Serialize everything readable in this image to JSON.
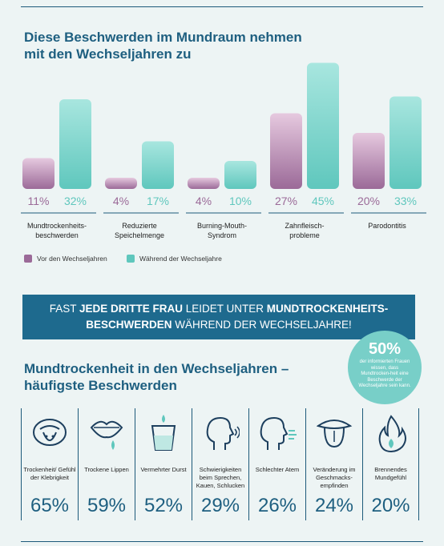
{
  "title": "Diese Beschwerden im Mundraum nehmen mit den Wechseljahren zu",
  "chart_data": {
    "type": "bar",
    "categories": [
      "Mundtrockenheits-\nbeschwerden",
      "Reduzierte\nSpeichelmenge",
      "Burning-Mouth-\nSyndrom",
      "Zahnfleisch-\nprobleme",
      "Parodontitis"
    ],
    "series": [
      {
        "name": "Vor den Wechseljahren",
        "values": [
          11,
          4,
          4,
          27,
          20
        ],
        "labels": [
          "11%",
          "4%",
          "4%",
          "27%",
          "20%"
        ],
        "color": "#9b6a98"
      },
      {
        "name": "Während der Wechseljahre",
        "values": [
          32,
          17,
          10,
          45,
          33
        ],
        "labels": [
          "32%",
          "17%",
          "10%",
          "45%",
          "33%"
        ],
        "color": "#5fc7bd"
      }
    ],
    "ylim": [
      0,
      48
    ]
  },
  "banner": {
    "p1": "FAST ",
    "b1": "JEDE DRITTE FRAU",
    "p2": " LEIDET UNTER ",
    "b2": "MUNDTROCKENHEITS-",
    "b3": "BESCHWERDEN",
    "p3": " WÄHREND DER WECHSELJAHRE!"
  },
  "badge": {
    "value": "50%",
    "text": "der informierten Frauen wissen, dass Mundtrocken-heit eine Beschwerde der Wechseljahre sein kann."
  },
  "section2_title": "Mundtrockenheit in den Wechseljahren – häufigste Beschwerden",
  "symptoms": [
    {
      "label": "Trockenheit/ Gefühl der Klebrigkeit",
      "value": "65%",
      "icon": "tongue-icon"
    },
    {
      "label": "Trockene Lippen",
      "value": "59%",
      "icon": "lips-icon"
    },
    {
      "label": "Vermehrter Durst",
      "value": "52%",
      "icon": "glass-icon"
    },
    {
      "label": "Schwierigkeiten beim Sprechen, Kauen, Schlucken",
      "value": "29%",
      "icon": "speaking-head-icon"
    },
    {
      "label": "Schlechter Atem",
      "value": "26%",
      "icon": "breath-icon"
    },
    {
      "label": "Veränderung im Geschmacks-empfinden",
      "value": "24%",
      "icon": "taste-tongue-icon"
    },
    {
      "label": "Brennendes Mundgefühl",
      "value": "20%",
      "icon": "flame-icon"
    }
  ]
}
